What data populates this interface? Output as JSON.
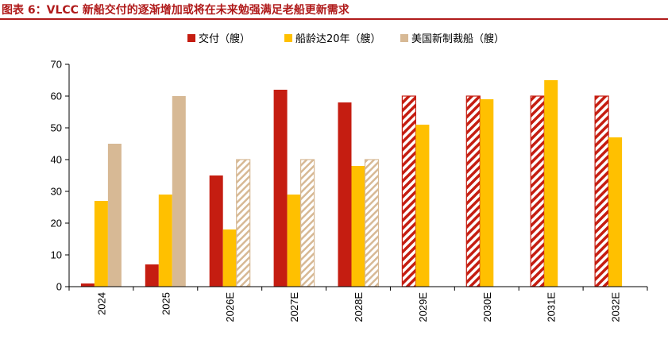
{
  "header": {
    "title": "图表 6：VLCC 新船交付的逐渐增加或将在未来勉强满足老船更新需求"
  },
  "chart_data": {
    "type": "bar",
    "title": "图表 6：VLCC 新船交付的逐渐增加或将在未来勉强满足老船更新需求",
    "categories": [
      "2024",
      "2025",
      "2026E",
      "2027E",
      "2028E",
      "2029E",
      "2030E",
      "2031E",
      "2032E"
    ],
    "series": [
      {
        "name": "交付（艘）",
        "color": "#c51d11",
        "values": [
          1,
          7,
          35,
          62,
          58,
          60,
          60,
          60,
          60
        ],
        "hatched": [
          false,
          false,
          false,
          false,
          false,
          true,
          true,
          true,
          true
        ]
      },
      {
        "name": "船龄达20年（艘）",
        "color": "#ffc000",
        "values": [
          27,
          29,
          18,
          29,
          38,
          51,
          59,
          65,
          47
        ],
        "hatched": [
          false,
          false,
          false,
          false,
          false,
          false,
          false,
          false,
          false
        ]
      },
      {
        "name": "美国新制裁船（艘）",
        "color": "#d7b995",
        "values": [
          45,
          60,
          40,
          40,
          40,
          null,
          null,
          null,
          null
        ],
        "hatched": [
          false,
          false,
          true,
          true,
          true,
          false,
          false,
          false,
          false
        ]
      }
    ],
    "yticks": [
      0,
      10,
      20,
      30,
      40,
      50,
      60,
      70
    ],
    "ylim": [
      0,
      70
    ],
    "xlabel": "",
    "ylabel": "",
    "legend_position": "top-center"
  }
}
